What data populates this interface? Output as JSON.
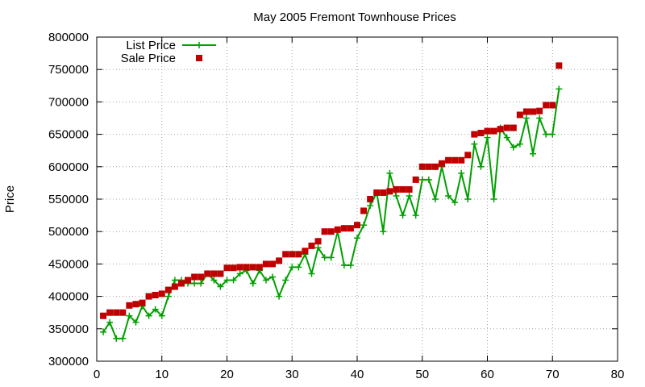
{
  "chart_data": {
    "type": "scatter",
    "title": "May 2005 Fremont Townhouse Prices",
    "xlabel": "",
    "ylabel": "Price",
    "xlim": [
      0,
      80
    ],
    "ylim": [
      300000,
      800000
    ],
    "x_ticks": [
      "0",
      "10",
      "20",
      "30",
      "40",
      "50",
      "60",
      "70",
      "80"
    ],
    "y_ticks": [
      "300000",
      "350000",
      "400000",
      "450000",
      "500000",
      "550000",
      "600000",
      "650000",
      "700000",
      "750000",
      "800000"
    ],
    "grid": true,
    "legend_placement": "top-left",
    "series": [
      {
        "name": "List Price",
        "style": "linespoints",
        "color": "#00a000",
        "x": [
          1,
          2,
          3,
          4,
          5,
          6,
          7,
          8,
          9,
          10,
          11,
          12,
          13,
          14,
          15,
          16,
          17,
          18,
          19,
          20,
          21,
          22,
          23,
          24,
          25,
          26,
          27,
          28,
          29,
          30,
          31,
          32,
          33,
          34,
          35,
          36,
          37,
          38,
          39,
          40,
          41,
          42,
          43,
          44,
          45,
          46,
          47,
          48,
          49,
          50,
          51,
          52,
          53,
          54,
          55,
          56,
          57,
          58,
          59,
          60,
          61,
          62,
          63,
          64,
          65,
          66,
          67,
          68,
          69,
          70,
          71
        ],
        "values": [
          345000,
          360000,
          335000,
          335000,
          370000,
          360000,
          385000,
          370000,
          380000,
          370000,
          400000,
          425000,
          425000,
          420000,
          420000,
          420000,
          435000,
          425000,
          415000,
          425000,
          425000,
          435000,
          440000,
          420000,
          440000,
          425000,
          430000,
          400000,
          425000,
          445000,
          445000,
          465000,
          435000,
          475000,
          460000,
          460000,
          500000,
          448000,
          448000,
          490000,
          510000,
          540000,
          560000,
          500000,
          590000,
          555000,
          525000,
          555000,
          525000,
          580000,
          580000,
          550000,
          600000,
          555000,
          545000,
          590000,
          550000,
          635000,
          600000,
          645000,
          550000,
          660000,
          645000,
          630000,
          635000,
          675000,
          620000,
          675000,
          650000,
          650000,
          720000
        ]
      },
      {
        "name": "Sale Price",
        "style": "points",
        "color": "#c00000",
        "x": [
          1,
          2,
          3,
          4,
          5,
          6,
          7,
          8,
          9,
          10,
          11,
          12,
          13,
          14,
          15,
          16,
          17,
          18,
          19,
          20,
          21,
          22,
          23,
          24,
          25,
          26,
          27,
          28,
          29,
          30,
          31,
          32,
          33,
          34,
          35,
          36,
          37,
          38,
          39,
          40,
          41,
          42,
          43,
          44,
          45,
          46,
          47,
          48,
          49,
          50,
          51,
          52,
          53,
          54,
          55,
          56,
          57,
          58,
          59,
          60,
          61,
          62,
          63,
          64,
          65,
          66,
          67,
          68,
          69,
          70,
          71
        ],
        "values": [
          370000,
          375000,
          375000,
          375000,
          386000,
          388000,
          390000,
          400000,
          402000,
          404000,
          410000,
          415000,
          420000,
          425000,
          430000,
          430000,
          435000,
          435000,
          435000,
          444000,
          444000,
          445000,
          445000,
          445000,
          445000,
          450000,
          450000,
          455000,
          465000,
          465000,
          465000,
          470000,
          478000,
          485000,
          500000,
          500000,
          503000,
          505000,
          505000,
          510000,
          532000,
          550000,
          560000,
          560000,
          562000,
          565000,
          565000,
          565000,
          580000,
          600000,
          600000,
          600000,
          605000,
          610000,
          610000,
          610000,
          618000,
          650000,
          652000,
          655000,
          655000,
          658000,
          660000,
          660000,
          680000,
          685000,
          685000,
          686000,
          695000,
          695000,
          756000
        ]
      }
    ]
  }
}
